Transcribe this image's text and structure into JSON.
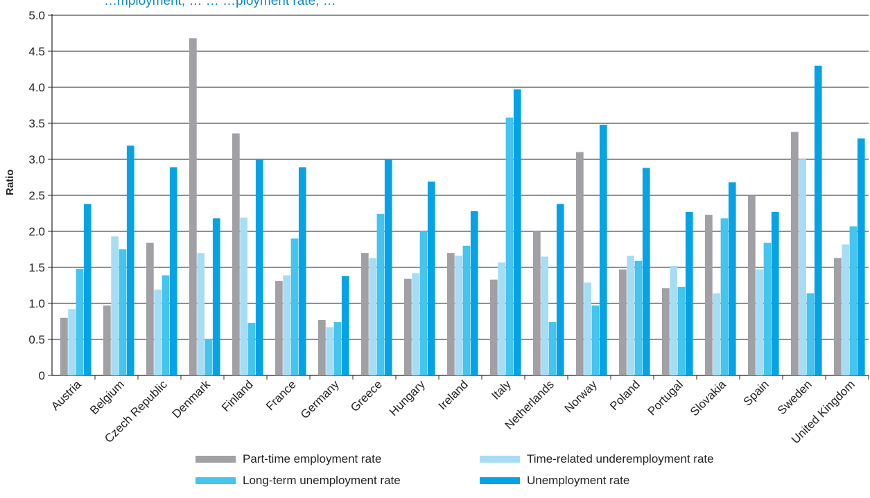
{
  "title_fragment": "…mployment, … … …ployment rate, …",
  "chart_data": {
    "type": "bar",
    "ylabel": "Ratio",
    "xlabel": "",
    "ylim": [
      0,
      5.0
    ],
    "yticks": [
      "0",
      "0.5",
      "1.0",
      "1.5",
      "2.0",
      "2.5",
      "3.0",
      "3.5",
      "4.0",
      "4.5",
      "5.0"
    ],
    "grid": true,
    "legend_position": "bottom",
    "categories": [
      "Austria",
      "Belgium",
      "Czech Republic",
      "Denmark",
      "Finland",
      "France",
      "Germany",
      "Greece",
      "Hungary",
      "Ireland",
      "Italy",
      "Netherlands",
      "Norway",
      "Poland",
      "Portugal",
      "Slovakia",
      "Spain",
      "Sweden",
      "United Kingdom"
    ],
    "series": [
      {
        "name": "Part-time employment rate",
        "color": "#a0a0a5",
        "values": [
          0.8,
          0.97,
          1.84,
          4.68,
          3.36,
          1.31,
          0.77,
          1.7,
          1.34,
          1.7,
          1.33,
          2.0,
          3.1,
          1.47,
          1.21,
          2.23,
          2.49,
          3.38,
          1.63
        ]
      },
      {
        "name": "Time-related underemployment rate",
        "color": "#a6ddf5",
        "values": [
          0.92,
          1.93,
          1.19,
          1.7,
          2.19,
          1.39,
          0.67,
          1.63,
          1.42,
          1.66,
          1.57,
          1.65,
          1.29,
          1.66,
          1.52,
          1.14,
          1.47,
          3.0,
          1.82
        ]
      },
      {
        "name": "Long-term unemployment rate",
        "color": "#45c4ee",
        "values": [
          1.48,
          1.75,
          1.39,
          0.51,
          0.73,
          1.9,
          0.74,
          2.24,
          2.0,
          1.8,
          3.58,
          0.74,
          0.97,
          1.59,
          1.23,
          2.18,
          1.84,
          1.14,
          2.07
        ]
      },
      {
        "name": "Unemployment rate",
        "color": "#05a3e5",
        "values": [
          2.38,
          3.19,
          2.89,
          2.18,
          3.0,
          2.89,
          1.38,
          3.0,
          2.69,
          2.28,
          3.97,
          2.38,
          3.48,
          2.88,
          2.27,
          2.68,
          2.27,
          4.3,
          3.29
        ]
      }
    ]
  }
}
